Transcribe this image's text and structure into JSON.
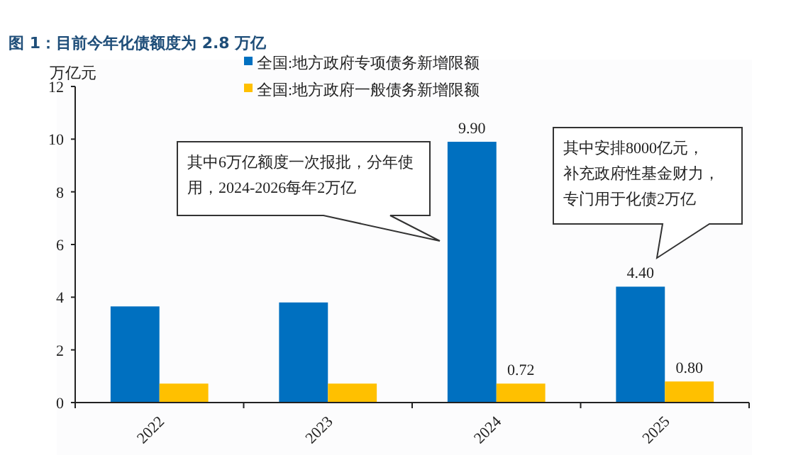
{
  "chart_data": {
    "type": "bar",
    "title": "图 1：目前今年化债额度为 2.8 万亿",
    "ylabel": "万亿元",
    "categories": [
      "2022",
      "2023",
      "2024",
      "2025"
    ],
    "series": [
      {
        "name": "全国:地方政府专项债务新增限额",
        "color": "#0070c0",
        "values": [
          3.65,
          3.8,
          9.9,
          4.4
        ],
        "value_labels": [
          null,
          null,
          "9.90",
          "4.40"
        ]
      },
      {
        "name": "全国:地方政府一般债务新增限额",
        "color": "#ffc000",
        "values": [
          0.72,
          0.72,
          0.72,
          0.8
        ],
        "value_labels": [
          null,
          null,
          "0.72",
          "0.80"
        ]
      }
    ],
    "ylim": [
      0,
      12
    ],
    "yticks": [
      0,
      2,
      4,
      6,
      8,
      10,
      12
    ],
    "grid": false,
    "legend": "top",
    "annotations": [
      "其中6万亿额度一次报批，分年使用，2024-2026每年2万亿",
      "其中安排8000亿元，补充政府性基金财力，专门用于化债2万亿"
    ]
  }
}
